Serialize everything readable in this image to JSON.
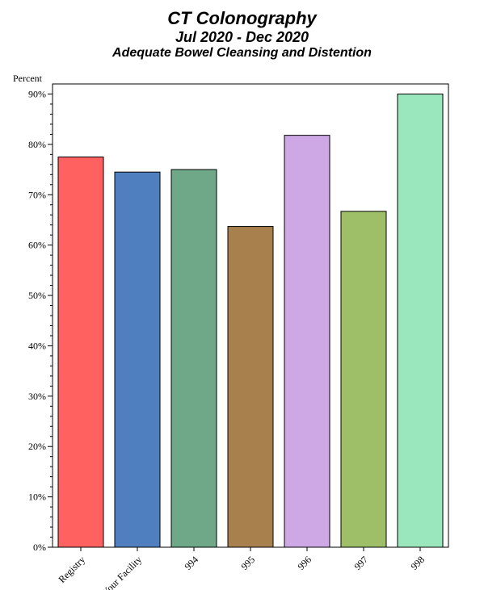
{
  "chart_data": {
    "type": "bar",
    "title": "CT Colonography",
    "subtitle": "Jul 2020 - Dec 2020",
    "subtitle2": "Adequate Bowel Cleansing and Distention",
    "xlabel": "",
    "ylabel": "Percent",
    "ylim": [
      0,
      90
    ],
    "yticks": [
      0,
      10,
      20,
      30,
      40,
      50,
      60,
      70,
      80,
      90
    ],
    "ytick_labels": [
      "0%",
      "10%",
      "20%",
      "30%",
      "40%",
      "50%",
      "60%",
      "70%",
      "80%",
      "90%"
    ],
    "grid": false,
    "categories": [
      "Registry",
      "Your Facility",
      "994",
      "995",
      "996",
      "997",
      "998"
    ],
    "values": [
      77.5,
      74.5,
      75.0,
      63.7,
      81.8,
      66.7,
      90.0
    ],
    "colors": [
      "#ff6060",
      "#4f7fbf",
      "#6fa888",
      "#a7804e",
      "#cda8e4",
      "#9ebf68",
      "#9be7bd"
    ]
  }
}
